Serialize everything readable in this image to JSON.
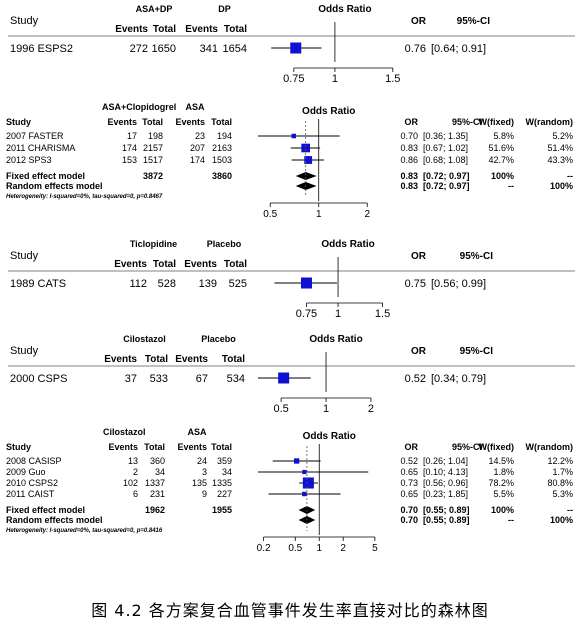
{
  "caption": "图 4.2   各方案复合血管事件发生率直接对比的森林图",
  "panels": [
    {
      "id": "asa-dp",
      "top": 0,
      "study_header": "Study",
      "group1": "ASA+DP",
      "group2": "DP",
      "events_label": "Events",
      "total_label": "Total",
      "or_header": "Odds Ratio",
      "or_col": "OR",
      "ci_col": "95%-CI",
      "wfixed_col": "",
      "wrandom_col": "",
      "studies": [
        {
          "name": "1996 ESPS2",
          "e1": "272",
          "t1": "1650",
          "e2": "341",
          "t2": "1654",
          "or": 0.76,
          "lo": 0.64,
          "hi": 0.91,
          "or_text": "0.76",
          "ci_text": "[0.64; 0.91]",
          "wf": "",
          "wr": ""
        }
      ],
      "ticks": [
        "0.75",
        "1",
        "1.5"
      ],
      "tick_values": [
        0.75,
        1,
        1.5
      ],
      "xmin": 0.6,
      "xmax": 1.6
    },
    {
      "id": "asa-clopidogrel",
      "top": 0,
      "study_header": "Study",
      "group1": "ASA+Clopidogrel",
      "group2": "ASA",
      "events_label": "Events",
      "total_label": "Total",
      "or_header": "Odds Ratio",
      "or_col": "OR",
      "ci_col": "95%-CI",
      "wfixed_col": "W(fixed)",
      "wrandom_col": "W(random)",
      "studies": [
        {
          "name": "2007 FASTER",
          "e1": "17",
          "t1": "198",
          "e2": "23",
          "t2": "194",
          "or": 0.7,
          "lo": 0.36,
          "hi": 1.35,
          "or_text": "0.70",
          "ci_text": "[0.36; 1.35]",
          "wf": "5.8%",
          "wr": "5.2%"
        },
        {
          "name": "2011 CHARISMA",
          "e1": "174",
          "t1": "2157",
          "e2": "207",
          "t2": "2163",
          "or": 0.83,
          "lo": 0.67,
          "hi": 1.02,
          "or_text": "0.83",
          "ci_text": "[0.67; 1.02]",
          "wf": "51.6%",
          "wr": "51.4%"
        },
        {
          "name": "2012 SPS3",
          "e1": "153",
          "t1": "1517",
          "e2": "174",
          "t2": "1503",
          "or": 0.86,
          "lo": 0.68,
          "hi": 1.08,
          "or_text": "0.86",
          "ci_text": "[0.68; 1.08]",
          "wf": "42.7%",
          "wr": "43.3%"
        }
      ],
      "fixed": {
        "label": "Fixed effect model",
        "t1": "3872",
        "t2": "3860",
        "or": 0.83,
        "lo": 0.72,
        "hi": 0.97,
        "or_text": "0.83",
        "ci_text": "[0.72; 0.97]",
        "wf": "100%",
        "wr": "--"
      },
      "random": {
        "label": "Random effects model",
        "or": 0.83,
        "lo": 0.72,
        "hi": 0.97,
        "or_text": "0.83",
        "ci_text": "[0.72; 0.97]",
        "wf": "--",
        "wr": "100%"
      },
      "heterogeneity": "Heterogeneity: I-squared=0%, tau-squared=0, p=0.8467",
      "ticks": [
        "0.5",
        "1",
        "2"
      ],
      "tick_values": [
        0.5,
        1,
        2
      ],
      "xmin": 0.42,
      "xmax": 2.4
    },
    {
      "id": "ticlopidine-placebo",
      "top": 0,
      "study_header": "Study",
      "group1": "Ticlopidine",
      "group2": "Placebo",
      "events_label": "Events",
      "total_label": "Total",
      "or_header": "Odds Ratio",
      "or_col": "OR",
      "ci_col": "95%-CI",
      "wfixed_col": "",
      "wrandom_col": "",
      "studies": [
        {
          "name": "1989 CATS",
          "e1": "112",
          "t1": "528",
          "e2": "139",
          "t2": "525",
          "or": 0.75,
          "lo": 0.56,
          "hi": 0.99,
          "or_text": "0.75",
          "ci_text": "[0.56; 0.99]",
          "wf": "",
          "wr": ""
        }
      ],
      "ticks": [
        "0.75",
        "1",
        "1.5"
      ],
      "tick_values": [
        0.75,
        1,
        1.5
      ],
      "xmin": 0.5,
      "xmax": 1.65
    },
    {
      "id": "cilostazol-placebo",
      "top": 0,
      "study_header": "Study",
      "group1": "Cilostazol",
      "group2": "Placebo",
      "events_label": "Events",
      "total_label": "Total",
      "or_header": "Odds Ratio",
      "or_col": "OR",
      "ci_col": "95%-CI",
      "wfixed_col": "",
      "wrandom_col": "",
      "studies": [
        {
          "name": "2000 CSPS",
          "e1": "37",
          "t1": "533",
          "e2": "67",
          "t2": "534",
          "or": 0.52,
          "lo": 0.34,
          "hi": 0.79,
          "or_text": "0.52",
          "ci_text": "[0.34; 0.79]",
          "wf": "",
          "wr": ""
        }
      ],
      "ticks": [
        "0.5",
        "1",
        "2"
      ],
      "tick_values": [
        0.5,
        1,
        2
      ],
      "xmin": 0.35,
      "xmax": 2.3
    },
    {
      "id": "cilostazol-asa",
      "top": 0,
      "study_header": "Study",
      "group1": "Cilostazol",
      "group2": "ASA",
      "events_label": "Events",
      "total_label": "Total",
      "or_header": "Odds Ratio",
      "or_col": "OR",
      "ci_col": "95%-CI",
      "wfixed_col": "W(fixed)",
      "wrandom_col": "W(random)",
      "studies": [
        {
          "name": "2008 CASISP",
          "e1": "13",
          "t1": "360",
          "e2": "24",
          "t2": "359",
          "or": 0.52,
          "lo": 0.26,
          "hi": 1.04,
          "or_text": "0.52",
          "ci_text": "[0.26; 1.04]",
          "wf": "14.5%",
          "wr": "12.2%"
        },
        {
          "name": "2009 Guo",
          "e1": "2",
          "t1": "34",
          "e2": "3",
          "t2": "34",
          "or": 0.65,
          "lo": 0.1,
          "hi": 4.13,
          "or_text": "0.65",
          "ci_text": "[0.10; 4.13]",
          "wf": "1.8%",
          "wr": "1.7%"
        },
        {
          "name": "2010 CSPS2",
          "e1": "102",
          "t1": "1337",
          "e2": "135",
          "t2": "1335",
          "or": 0.73,
          "lo": 0.56,
          "hi": 0.96,
          "or_text": "0.73",
          "ci_text": "[0.56; 0.96]",
          "wf": "78.2%",
          "wr": "80.8%"
        },
        {
          "name": "2011 CAIST",
          "e1": "6",
          "t1": "231",
          "e2": "9",
          "t2": "227",
          "or": 0.65,
          "lo": 0.23,
          "hi": 1.85,
          "or_text": "0.65",
          "ci_text": "[0.23; 1.85]",
          "wf": "5.5%",
          "wr": "5.3%"
        }
      ],
      "fixed": {
        "label": "Fixed effect model",
        "t1": "1962",
        "t2": "1955",
        "or": 0.7,
        "lo": 0.55,
        "hi": 0.89,
        "or_text": "0.70",
        "ci_text": "[0.55; 0.89]",
        "wf": "100%",
        "wr": "--"
      },
      "random": {
        "label": "Random effects model",
        "or": 0.7,
        "lo": 0.55,
        "hi": 0.89,
        "or_text": "0.70",
        "ci_text": "[0.55; 0.89]",
        "wf": "--",
        "wr": "100%"
      },
      "heterogeneity": "Heterogeneity: I-squared=0%, tau-squared=0, p=0.8416",
      "ticks": [
        "0.2",
        "0.5",
        "1",
        "2",
        "5"
      ],
      "tick_values": [
        0.2,
        0.5,
        1,
        2,
        5
      ],
      "xmin": 0.17,
      "xmax": 5.8
    }
  ],
  "colors": {
    "square": "#1010d0",
    "line": "#000000",
    "dashed": "#555555"
  },
  "chart_data": {
    "type": "forest",
    "scale": "log",
    "reference_line": 1,
    "panels": [
      {
        "comparison": "ASA+DP vs DP",
        "studies": [
          {
            "name": "1996 ESPS2",
            "or": 0.76,
            "ci": [
              0.64,
              0.91
            ]
          }
        ]
      },
      {
        "comparison": "ASA+Clopidogrel vs ASA",
        "studies": [
          {
            "name": "2007 FASTER",
            "or": 0.7,
            "ci": [
              0.36,
              1.35
            ]
          },
          {
            "name": "2011 CHARISMA",
            "or": 0.83,
            "ci": [
              0.67,
              1.02
            ]
          },
          {
            "name": "2012 SPS3",
            "or": 0.86,
            "ci": [
              0.68,
              1.08
            ]
          }
        ],
        "fixed": {
          "or": 0.83,
          "ci": [
            0.72,
            0.97
          ]
        },
        "random": {
          "or": 0.83,
          "ci": [
            0.72,
            0.97
          ]
        }
      },
      {
        "comparison": "Ticlopidine vs Placebo",
        "studies": [
          {
            "name": "1989 CATS",
            "or": 0.75,
            "ci": [
              0.56,
              0.99
            ]
          }
        ]
      },
      {
        "comparison": "Cilostazol vs Placebo",
        "studies": [
          {
            "name": "2000 CSPS",
            "or": 0.52,
            "ci": [
              0.34,
              0.79
            ]
          }
        ]
      },
      {
        "comparison": "Cilostazol vs ASA",
        "studies": [
          {
            "name": "2008 CASISP",
            "or": 0.52,
            "ci": [
              0.26,
              1.04
            ]
          },
          {
            "name": "2009 Guo",
            "or": 0.65,
            "ci": [
              0.1,
              4.13
            ]
          },
          {
            "name": "2010 CSPS2",
            "or": 0.73,
            "ci": [
              0.56,
              0.96
            ]
          },
          {
            "name": "2011 CAIST",
            "or": 0.65,
            "ci": [
              0.23,
              1.85
            ]
          }
        ],
        "fixed": {
          "or": 0.7,
          "ci": [
            0.55,
            0.89
          ]
        },
        "random": {
          "or": 0.7,
          "ci": [
            0.55,
            0.89
          ]
        }
      }
    ]
  }
}
